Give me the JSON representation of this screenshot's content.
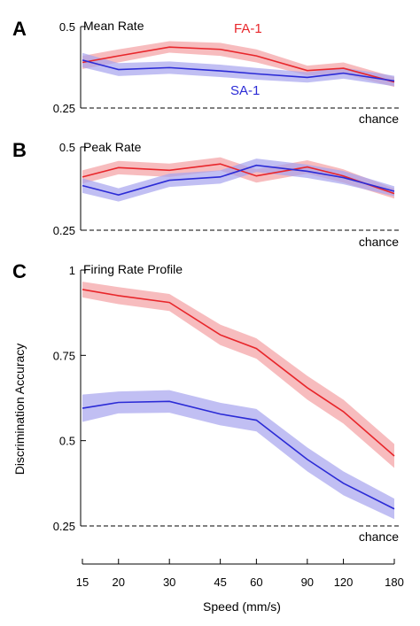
{
  "colors": {
    "fa": "#e8262b",
    "sa": "#2b2bd6",
    "fa_band": "#f4a0a2",
    "sa_band": "#a6a4ee"
  },
  "shared": {
    "xlabel": "Speed (mm/s)",
    "ylabel": "Discrimination Accuracy",
    "chance_label": "chance",
    "x_ticks": [
      15,
      20,
      30,
      45,
      60,
      90,
      120,
      180
    ],
    "x_scale": "log"
  },
  "chart_data": [
    {
      "type": "line",
      "panel": "A",
      "title": "Mean Rate",
      "ylim": [
        0.25,
        0.5
      ],
      "y_ticks": [
        0.25,
        0.5
      ],
      "y_tick_labels": [
        "0.25",
        "0.5"
      ],
      "chance": 0.25,
      "x": [
        15,
        20,
        30,
        45,
        60,
        90,
        120,
        180
      ],
      "series": [
        {
          "name": "FA-1",
          "color_key": "fa",
          "values": [
            0.39,
            0.41,
            0.437,
            0.43,
            0.41,
            0.365,
            0.372,
            0.33
          ],
          "lower": [
            0.37,
            0.39,
            0.42,
            0.41,
            0.39,
            0.35,
            0.355,
            0.315
          ],
          "upper": [
            0.41,
            0.43,
            0.455,
            0.45,
            0.43,
            0.38,
            0.39,
            0.345
          ]
        },
        {
          "name": "SA-1",
          "color_key": "sa",
          "values": [
            0.397,
            0.368,
            0.374,
            0.364,
            0.355,
            0.344,
            0.357,
            0.333
          ],
          "lower": [
            0.375,
            0.348,
            0.355,
            0.345,
            0.337,
            0.328,
            0.34,
            0.317
          ],
          "upper": [
            0.419,
            0.388,
            0.393,
            0.383,
            0.373,
            0.36,
            0.374,
            0.349
          ]
        }
      ]
    },
    {
      "type": "line",
      "panel": "B",
      "title": "Peak Rate",
      "ylim": [
        0.25,
        0.5
      ],
      "y_ticks": [
        0.25,
        0.5
      ],
      "y_tick_labels": [
        "0.25",
        "0.5"
      ],
      "chance": 0.25,
      "x": [
        15,
        20,
        30,
        45,
        60,
        90,
        120,
        180
      ],
      "series": [
        {
          "name": "",
          "color_key": "fa",
          "values": [
            0.41,
            0.438,
            0.43,
            0.449,
            0.413,
            0.44,
            0.413,
            0.36
          ],
          "lower": [
            0.39,
            0.418,
            0.41,
            0.429,
            0.393,
            0.42,
            0.393,
            0.345
          ],
          "upper": [
            0.43,
            0.458,
            0.45,
            0.469,
            0.433,
            0.46,
            0.433,
            0.375
          ]
        },
        {
          "name": "",
          "color_key": "sa",
          "values": [
            0.384,
            0.356,
            0.4,
            0.41,
            0.445,
            0.427,
            0.408,
            0.367
          ],
          "lower": [
            0.362,
            0.336,
            0.38,
            0.39,
            0.425,
            0.407,
            0.388,
            0.352
          ],
          "upper": [
            0.406,
            0.376,
            0.42,
            0.43,
            0.465,
            0.447,
            0.428,
            0.382
          ]
        }
      ]
    },
    {
      "type": "line",
      "panel": "C",
      "title": "Firing Rate Profile",
      "ylim": [
        0.25,
        1.0
      ],
      "y_ticks": [
        0.25,
        0.5,
        0.75,
        1.0
      ],
      "y_tick_labels": [
        "0.25",
        "0.5",
        "0.75",
        "1"
      ],
      "chance": 0.25,
      "x": [
        15,
        20,
        30,
        45,
        60,
        90,
        120,
        180
      ],
      "series": [
        {
          "name": "",
          "color_key": "fa",
          "values": [
            0.943,
            0.925,
            0.905,
            0.81,
            0.77,
            0.655,
            0.585,
            0.455
          ],
          "lower": [
            0.92,
            0.9,
            0.88,
            0.78,
            0.74,
            0.62,
            0.55,
            0.42
          ],
          "upper": [
            0.966,
            0.95,
            0.93,
            0.84,
            0.8,
            0.69,
            0.62,
            0.49
          ]
        },
        {
          "name": "",
          "color_key": "sa",
          "values": [
            0.595,
            0.612,
            0.615,
            0.578,
            0.56,
            0.445,
            0.375,
            0.3
          ],
          "lower": [
            0.555,
            0.58,
            0.582,
            0.545,
            0.527,
            0.41,
            0.34,
            0.27
          ],
          "upper": [
            0.635,
            0.644,
            0.648,
            0.611,
            0.593,
            0.48,
            0.41,
            0.33
          ]
        }
      ]
    }
  ]
}
